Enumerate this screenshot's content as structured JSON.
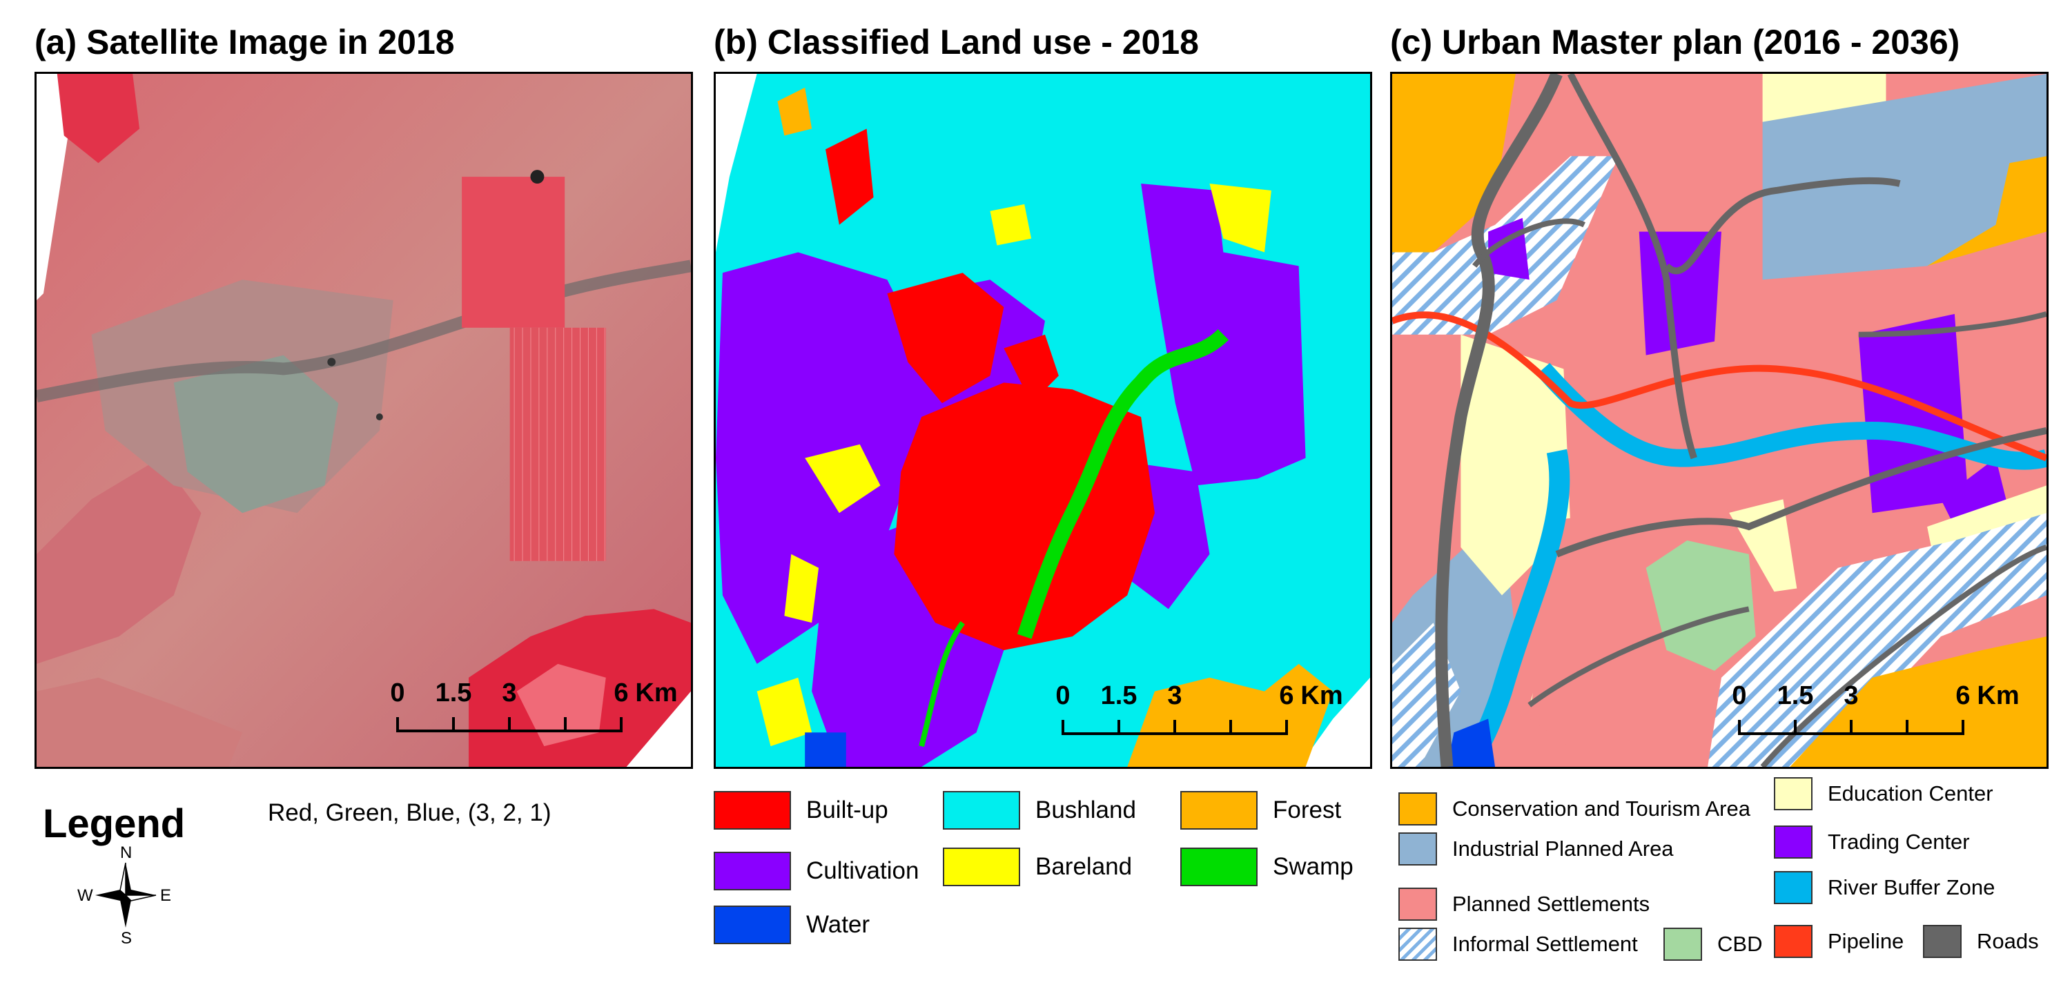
{
  "panel_a": {
    "title": "(a) Satellite Image in 2018",
    "scale": {
      "ticks": [
        "0",
        "1.5",
        "3",
        "6"
      ],
      "unit": "Km"
    }
  },
  "panel_b": {
    "title": "(b) Classified Land use - 2018",
    "scale": {
      "ticks": [
        "0",
        "1.5",
        "3",
        "6"
      ],
      "unit": "Km"
    }
  },
  "panel_c": {
    "title": "(c) Urban Master plan (2016 - 2036)",
    "scale": {
      "ticks": [
        "0",
        "1.5",
        "3",
        "6"
      ],
      "unit": "Km"
    }
  },
  "legend_a": {
    "heading": "Legend",
    "band_note": "Red, Green, Blue, (3, 2, 1)",
    "compass": {
      "n": "N",
      "s": "S",
      "e": "E",
      "w": "W"
    }
  },
  "legend_b": {
    "items": [
      {
        "label": "Built-up",
        "color": "#ff0000"
      },
      {
        "label": "Bushland",
        "color": "#00eeee"
      },
      {
        "label": "Forest",
        "color": "#ffb400"
      },
      {
        "label": "Cultivation",
        "color": "#8a00ff"
      },
      {
        "label": "Bareland",
        "color": "#ffff00"
      },
      {
        "label": "Swamp",
        "color": "#00dd00"
      },
      {
        "label": "Water",
        "color": "#0044ee"
      }
    ]
  },
  "legend_c": {
    "items": [
      {
        "label": "Conservation and Tourism  Area",
        "color": "#ffb400"
      },
      {
        "label": "Education Center",
        "color": "#ffffc0"
      },
      {
        "label": "Industrial Planned Area",
        "color": "#8fb3d3"
      },
      {
        "label": "Trading Center",
        "color": "#8a00ff"
      },
      {
        "label": "Planned Settlements",
        "color": "#f58a8a"
      },
      {
        "label": "River Buffer Zone",
        "color": "#00b4ec"
      },
      {
        "label": "Informal Settlement",
        "color": "hatched"
      },
      {
        "label": "CBD",
        "color": "#a4d8a0"
      },
      {
        "label": "Pipeline",
        "color": "#ff3b1a"
      },
      {
        "label": "Roads",
        "color": "#666666"
      }
    ]
  }
}
